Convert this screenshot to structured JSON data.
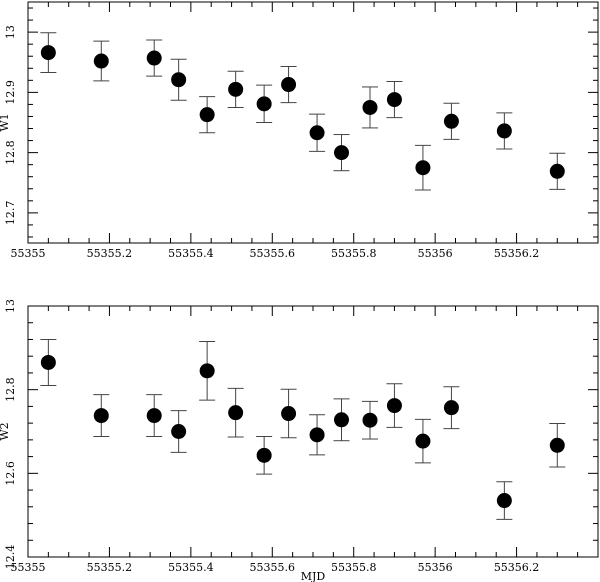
{
  "chart_data": [
    {
      "type": "scatter",
      "panel": "top",
      "title": "",
      "xlabel": "",
      "ylabel": "W1",
      "xlim": [
        55355.0,
        55356.4
      ],
      "ylim": [
        13.05,
        12.65
      ],
      "y_inverted": true,
      "xticks": [
        55355,
        55355.2,
        55355.4,
        55355.6,
        55355.8,
        55356,
        55356.2
      ],
      "xtick_labels": [
        "55355",
        "55355.2",
        "55355.4",
        "55355.6",
        "55355.8",
        "55356",
        "55356.2"
      ],
      "yticks": [
        12.7,
        12.8,
        12.9,
        13.0
      ],
      "ytick_labels": [
        "12.7",
        "12.8",
        "12.9",
        "13"
      ],
      "series": [
        {
          "x": [
            55355.05,
            55355.18,
            55355.31,
            55355.37,
            55355.44,
            55355.51,
            55355.58,
            55355.64,
            55355.71,
            55355.77,
            55355.84,
            55355.9,
            55355.97,
            55356.04,
            55356.17,
            55356.3
          ],
          "y": [
            12.966,
            12.952,
            12.957,
            12.921,
            12.863,
            12.905,
            12.881,
            12.913,
            12.833,
            12.8,
            12.875,
            12.888,
            12.775,
            12.852,
            12.836,
            12.769
          ],
          "yerr": [
            0.033,
            0.033,
            0.03,
            0.034,
            0.03,
            0.03,
            0.031,
            0.03,
            0.031,
            0.03,
            0.034,
            0.03,
            0.037,
            0.03,
            0.03,
            0.03
          ]
        }
      ]
    },
    {
      "type": "scatter",
      "panel": "bottom",
      "title": "",
      "xlabel": "MJD",
      "ylabel": "W2",
      "xlim": [
        55355.0,
        55356.4
      ],
      "ylim": [
        13.0,
        12.4
      ],
      "y_inverted": true,
      "xticks": [
        55355,
        55355.2,
        55355.4,
        55355.6,
        55355.8,
        55356,
        55356.2
      ],
      "xtick_labels": [
        "55355",
        "55355.2",
        "55355.4",
        "55355.6",
        "55355.8",
        "55356",
        "55356.2"
      ],
      "yticks": [
        12.4,
        12.6,
        12.8,
        13.0
      ],
      "ytick_labels": [
        "12.4",
        "12.6",
        "12.8",
        "13"
      ],
      "series": [
        {
          "x": [
            55355.05,
            55355.18,
            55355.31,
            55355.37,
            55355.44,
            55355.51,
            55355.58,
            55355.64,
            55355.71,
            55355.77,
            55355.84,
            55355.9,
            55355.97,
            55356.04,
            55356.17,
            55356.3
          ],
          "y": [
            12.865,
            12.738,
            12.738,
            12.7,
            12.845,
            12.745,
            12.643,
            12.743,
            12.692,
            12.728,
            12.727,
            12.762,
            12.677,
            12.757,
            12.535,
            12.667
          ],
          "yerr": [
            0.055,
            0.05,
            0.05,
            0.05,
            0.07,
            0.058,
            0.045,
            0.058,
            0.048,
            0.05,
            0.045,
            0.052,
            0.052,
            0.05,
            0.045,
            0.052
          ]
        }
      ]
    }
  ]
}
